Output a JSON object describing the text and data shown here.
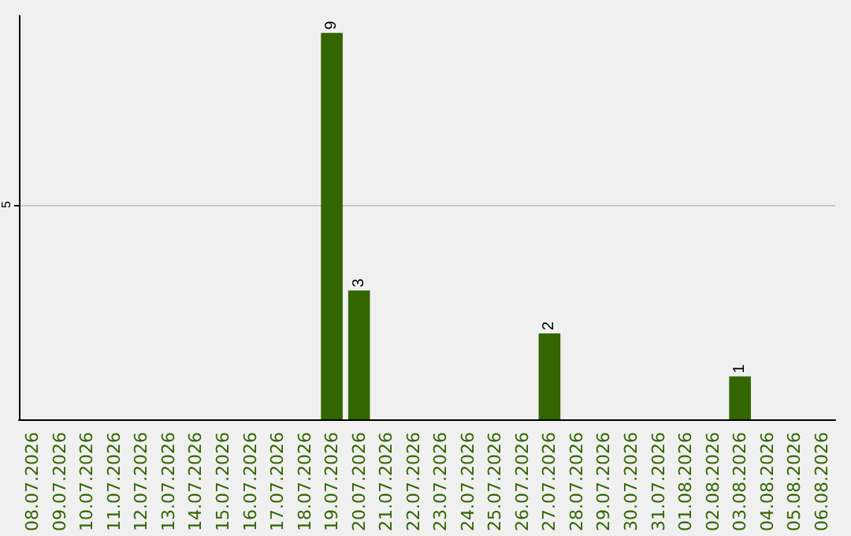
{
  "chart_data": {
    "type": "bar",
    "categories": [
      "08.07.2026",
      "09.07.2026",
      "10.07.2026",
      "11.07.2026",
      "12.07.2026",
      "13.07.2026",
      "14.07.2026",
      "15.07.2026",
      "16.07.2026",
      "17.07.2026",
      "18.07.2026",
      "19.07.2026",
      "20.07.2026",
      "21.07.2026",
      "22.07.2026",
      "23.07.2026",
      "24.07.2026",
      "25.07.2026",
      "26.07.2026",
      "27.07.2026",
      "28.07.2026",
      "29.07.2026",
      "30.07.2026",
      "31.07.2026",
      "01.08.2026",
      "02.08.2026",
      "03.08.2026",
      "04.08.2026",
      "05.08.2026",
      "06.08.2026"
    ],
    "values": [
      0,
      0,
      0,
      0,
      0,
      0,
      0,
      0,
      0,
      0,
      0,
      9,
      3,
      0,
      0,
      0,
      0,
      0,
      0,
      2,
      0,
      0,
      0,
      0,
      0,
      0,
      1,
      0,
      0,
      0
    ],
    "value_labels": [
      null,
      null,
      null,
      null,
      null,
      null,
      null,
      null,
      null,
      null,
      null,
      "9",
      "3",
      null,
      null,
      null,
      null,
      null,
      null,
      "2",
      null,
      null,
      null,
      null,
      null,
      null,
      "1",
      null,
      null,
      null
    ],
    "color": "#336600",
    "ylim": [
      0,
      9.4
    ],
    "yticks": [
      5
    ],
    "grid": "y"
  }
}
